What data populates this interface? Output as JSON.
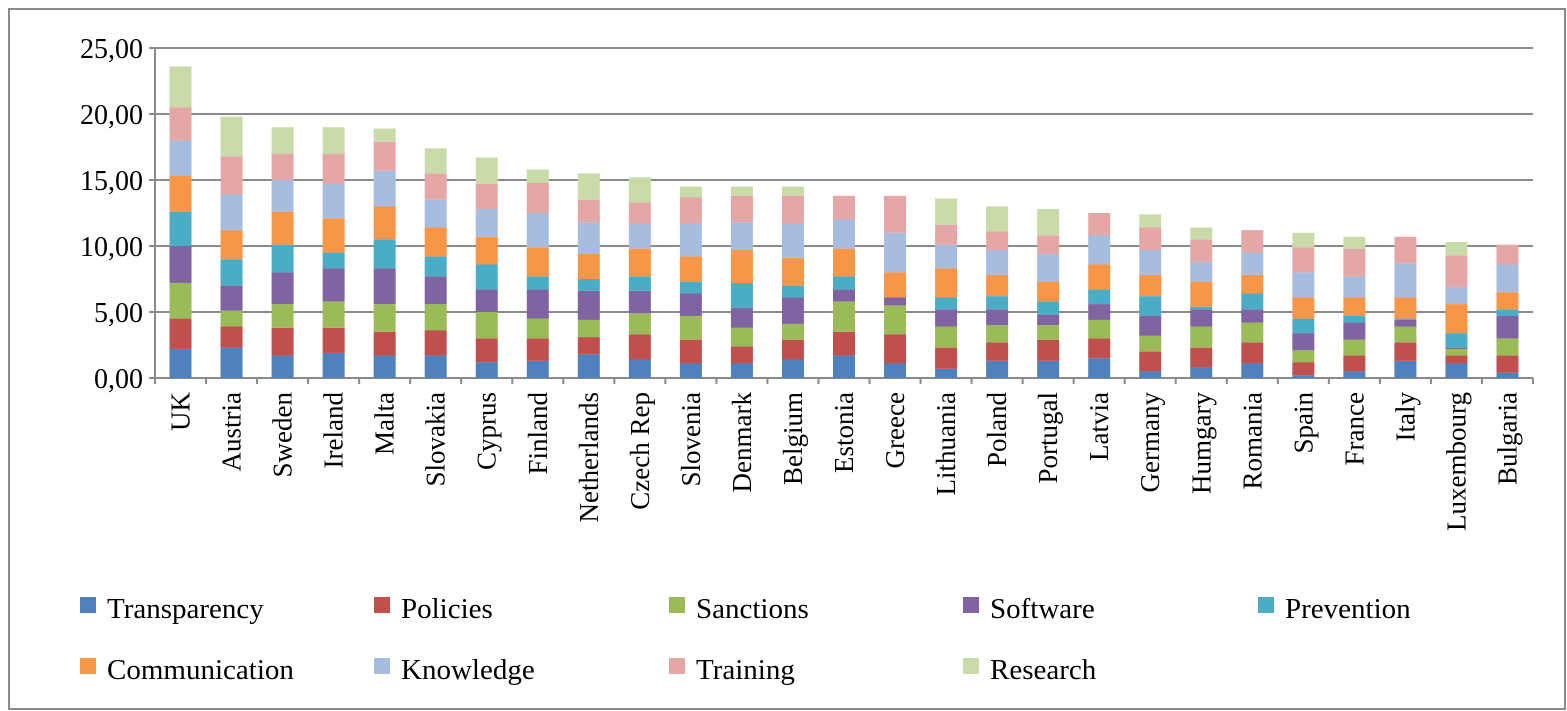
{
  "chart_data": {
    "type": "stacked-bar",
    "categories": [
      "UK",
      "Austria",
      "Sweden",
      "Ireland",
      "Malta",
      "Slovakia",
      "Cyprus",
      "Finland",
      "Netherlands",
      "Czech Rep",
      "Slovenia",
      "Denmark",
      "Belgium",
      "Estonia",
      "Greece",
      "Lithuania",
      "Poland",
      "Portugal",
      "Latvia",
      "Germany",
      "Humgary",
      "Romania",
      "Spain",
      "France",
      "Italy",
      "Luxembourg",
      "Bulgaria"
    ],
    "series": [
      {
        "name": "Transparency",
        "color": "#4f81bd",
        "values": [
          2.2,
          2.3,
          1.7,
          1.9,
          1.7,
          1.7,
          1.2,
          1.3,
          1.8,
          1.4,
          1.1,
          1.1,
          1.4,
          1.7,
          1.1,
          0.7,
          1.3,
          1.3,
          1.5,
          0.5,
          0.8,
          1.1,
          0.2,
          0.5,
          1.3,
          1.1,
          0.4
        ]
      },
      {
        "name": "Policies",
        "color": "#c0504d",
        "values": [
          2.3,
          1.6,
          2.1,
          1.9,
          1.8,
          1.9,
          1.8,
          1.7,
          1.3,
          1.9,
          1.8,
          1.3,
          1.5,
          1.8,
          2.2,
          1.6,
          1.4,
          1.6,
          1.5,
          1.5,
          1.5,
          1.6,
          1.0,
          1.2,
          1.4,
          0.6,
          1.3
        ]
      },
      {
        "name": "Sanctions",
        "color": "#9bbb59",
        "values": [
          2.7,
          1.2,
          1.8,
          2.0,
          2.1,
          2.0,
          2.0,
          1.5,
          1.3,
          1.6,
          1.8,
          1.4,
          1.2,
          2.3,
          2.2,
          1.6,
          1.3,
          1.1,
          1.4,
          1.2,
          1.6,
          1.5,
          0.9,
          1.2,
          1.2,
          0.5,
          1.3
        ]
      },
      {
        "name": "Software",
        "color": "#8064a2",
        "values": [
          2.8,
          1.9,
          2.4,
          2.5,
          2.7,
          2.1,
          1.7,
          2.2,
          2.2,
          1.7,
          1.7,
          1.5,
          2.0,
          0.9,
          0.6,
          1.3,
          1.2,
          0.8,
          1.2,
          1.5,
          1.3,
          1.0,
          1.3,
          1.3,
          0.5,
          0.1,
          1.7
        ]
      },
      {
        "name": "Prevention",
        "color": "#4bacc6",
        "values": [
          2.6,
          2.0,
          2.1,
          1.2,
          2.2,
          1.5,
          1.9,
          1.0,
          0.9,
          1.1,
          0.9,
          1.9,
          0.9,
          1.0,
          0,
          0.9,
          1.0,
          1.0,
          1.1,
          1.5,
          0.2,
          1.2,
          1.1,
          0.5,
          0.1,
          1.1,
          0.5
        ]
      },
      {
        "name": "Communication",
        "color": "#f79646",
        "values": [
          2.7,
          2.2,
          2.5,
          2.6,
          2.5,
          2.2,
          2.1,
          2.2,
          1.9,
          2.1,
          1.9,
          2.5,
          2.1,
          2.1,
          1.9,
          2.2,
          1.6,
          1.5,
          1.9,
          1.6,
          1.9,
          1.4,
          1.6,
          1.4,
          1.6,
          2.2,
          1.3
        ]
      },
      {
        "name": "Knowledge",
        "color": "#a7bde0",
        "values": [
          2.7,
          2.7,
          2.4,
          2.6,
          2.7,
          2.1,
          2.1,
          2.6,
          2.4,
          1.9,
          2.5,
          2.1,
          2.6,
          2.2,
          3.0,
          1.8,
          1.9,
          2.1,
          2.2,
          1.9,
          1.5,
          1.7,
          1.9,
          1.6,
          2.6,
          1.3,
          2.1
        ]
      },
      {
        "name": "Training",
        "color": "#e4a7a6",
        "values": [
          2.5,
          2.9,
          2.0,
          2.3,
          2.2,
          2.0,
          1.9,
          2.3,
          1.7,
          1.6,
          2.0,
          2.0,
          2.1,
          1.8,
          2.8,
          1.5,
          1.4,
          1.4,
          1.7,
          1.7,
          1.7,
          1.7,
          1.9,
          2.1,
          2.0,
          2.4,
          1.5
        ]
      },
      {
        "name": "Research",
        "color": "#c9dba8",
        "values": [
          3.1,
          3.0,
          2.0,
          2.0,
          1.0,
          1.9,
          2.0,
          1.0,
          2.0,
          1.9,
          0.8,
          0.7,
          0.7,
          0,
          0,
          2.0,
          1.9,
          2.0,
          0,
          1.0,
          0.9,
          0,
          1.1,
          0.9,
          0,
          1.0,
          0
        ]
      }
    ],
    "ylim": [
      0,
      25
    ],
    "yticks": [
      {
        "value": 0,
        "label": "0,00"
      },
      {
        "value": 5,
        "label": "5,00"
      },
      {
        "value": 10,
        "label": "10,00"
      },
      {
        "value": 15,
        "label": "15,00"
      },
      {
        "value": 20,
        "label": "20,00"
      },
      {
        "value": 25,
        "label": "25,00"
      }
    ],
    "grid": true
  }
}
